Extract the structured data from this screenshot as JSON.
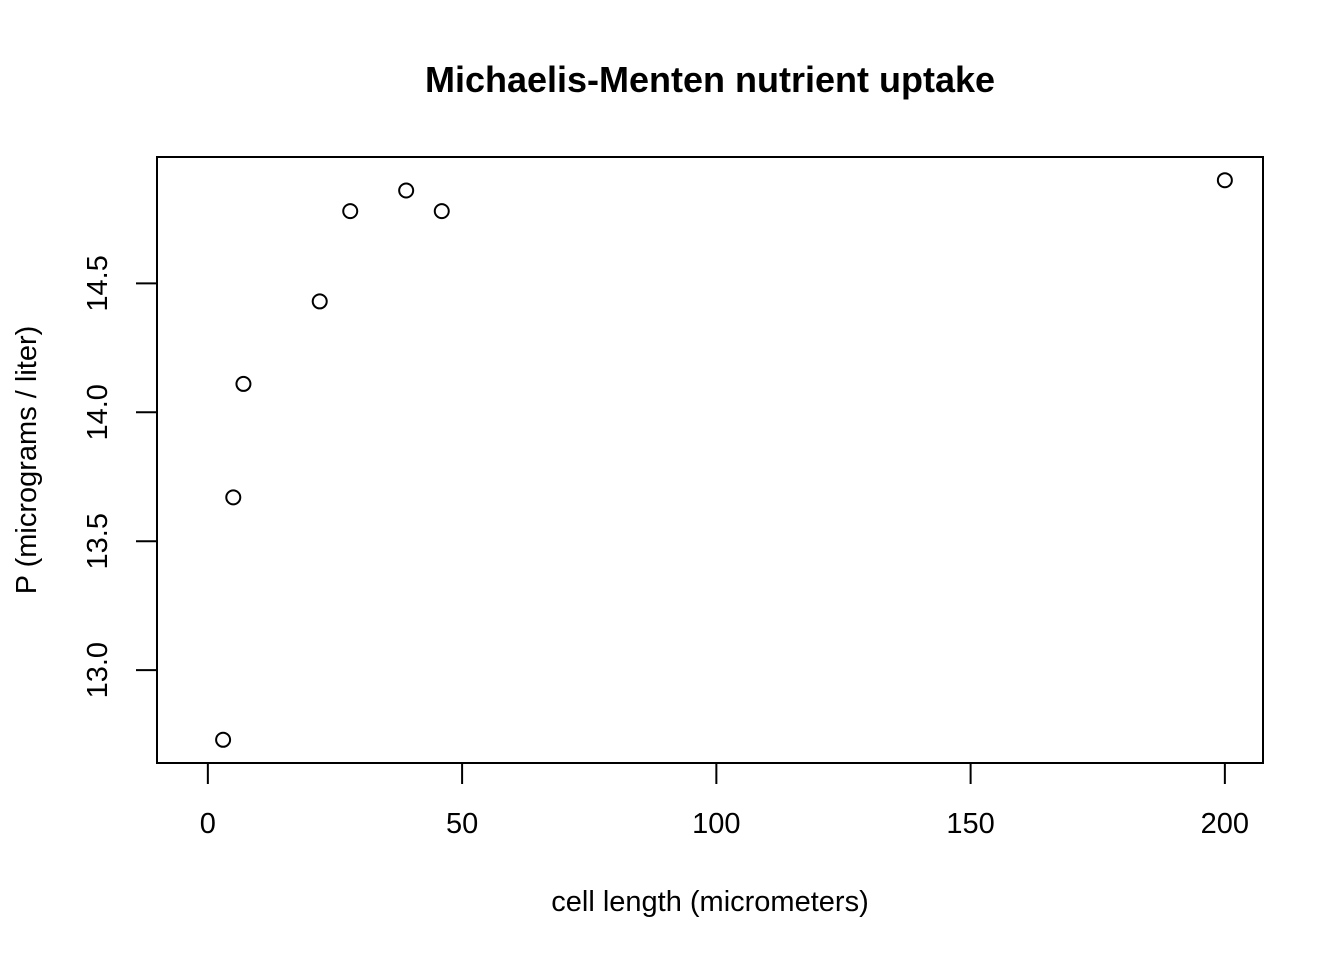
{
  "chart_data": {
    "type": "scatter",
    "title": "Michaelis-Menten nutrient uptake",
    "xlabel": "cell length (micrometers)",
    "ylabel": "P (micrograms / liter)",
    "xlim": [
      -10,
      207.5
    ],
    "ylim": [
      12.64,
      14.99
    ],
    "x_ticks": [
      0,
      50,
      100,
      150,
      200
    ],
    "x_tick_labels": [
      "0",
      "50",
      "100",
      "150",
      "200"
    ],
    "y_ticks": [
      13.0,
      13.5,
      14.0,
      14.5
    ],
    "y_tick_labels": [
      "13.0",
      "13.5",
      "14.0",
      "14.5"
    ],
    "grid": false,
    "marker": "open-circle",
    "points": [
      {
        "x": 3,
        "y": 12.73
      },
      {
        "x": 5,
        "y": 13.67
      },
      {
        "x": 7,
        "y": 14.11
      },
      {
        "x": 22,
        "y": 14.43
      },
      {
        "x": 28,
        "y": 14.78
      },
      {
        "x": 39,
        "y": 14.86
      },
      {
        "x": 46,
        "y": 14.78
      },
      {
        "x": 200,
        "y": 14.9
      }
    ],
    "colors": {
      "axis": "#000000",
      "marker_stroke": "#000000",
      "background": "#ffffff"
    }
  }
}
